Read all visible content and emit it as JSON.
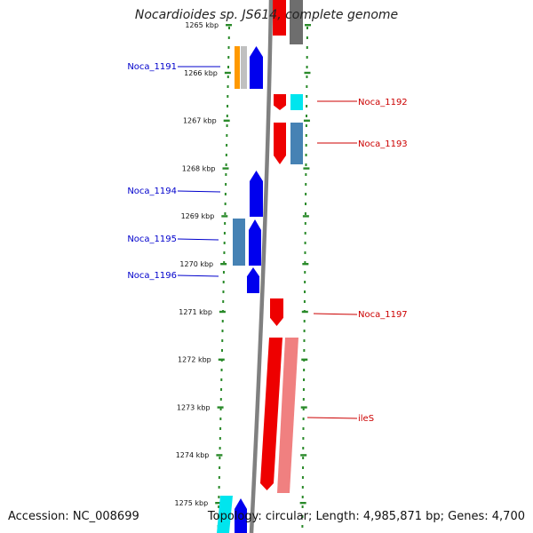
{
  "title": "Nocardioides sp. JS614, complete genome",
  "footer": {
    "accession": "Accession: NC_008699",
    "genome_info": "Topology: circular; Length: 4,985,871 bp; Genes: 4,700"
  },
  "ruler": {
    "ticks": [
      {
        "kbp": 1265,
        "label": "1265 kbp"
      },
      {
        "kbp": 1266,
        "label": "1266 kbp"
      },
      {
        "kbp": 1267,
        "label": "1267 kbp"
      },
      {
        "kbp": 1268,
        "label": "1268 kbp"
      },
      {
        "kbp": 1269,
        "label": "1269 kbp"
      },
      {
        "kbp": 1270,
        "label": "1270 kbp"
      },
      {
        "kbp": 1271,
        "label": "1271 kbp"
      },
      {
        "kbp": 1272,
        "label": "1272 kbp"
      },
      {
        "kbp": 1273,
        "label": "1273 kbp"
      },
      {
        "kbp": 1274,
        "label": "1274 kbp"
      },
      {
        "kbp": 1275,
        "label": "1275 kbp"
      }
    ]
  },
  "colors": {
    "tick": "#2a8a2a",
    "backbone": "#808080",
    "reverse_label": "#0000cc",
    "forward_label": "#cc0000",
    "blue": "#0000ee",
    "steelblue": "#4682b4",
    "red": "#ee0000",
    "pink": "#f08080",
    "cyan": "#00e5ee",
    "orange": "#ff9900",
    "silver": "#c0c0c0",
    "gray": "#6e6e6e"
  },
  "genes": {
    "reverse": [
      {
        "label": "Noca_1191"
      },
      {
        "label": "Noca_1194"
      },
      {
        "label": "Noca_1195"
      },
      {
        "label": "Noca_1196"
      }
    ],
    "forward": [
      {
        "label": "Noca_1192"
      },
      {
        "label": "Noca_1193"
      },
      {
        "label": "Noca_1197"
      },
      {
        "label": "ileS"
      }
    ]
  }
}
